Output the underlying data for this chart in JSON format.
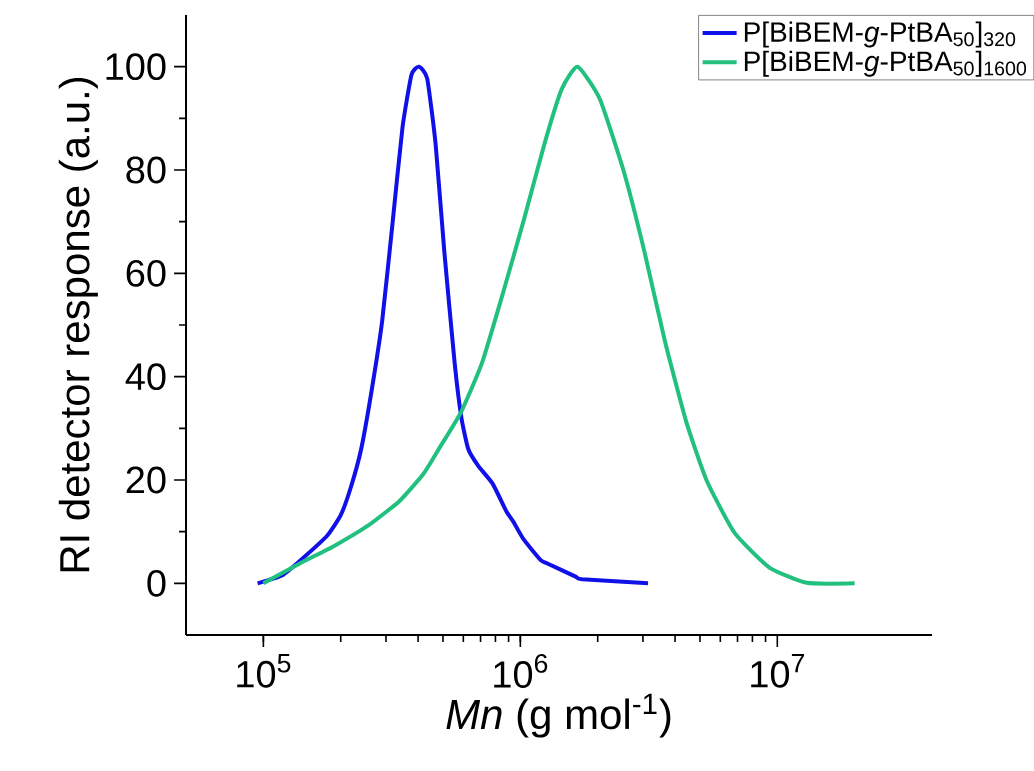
{
  "chart_data": {
    "type": "line",
    "xlabel": "*Mn* (g mol$^{-1}$)",
    "ylabel": "RI detector response (a.u.)",
    "log": "x",
    "xlim": [
      50000,
      40000000
    ],
    "ylim": [
      -10,
      110
    ],
    "xticks": [
      {
        "value": 100000,
        "label": "10$^{5}$"
      },
      {
        "value": 1000000,
        "label": "10$^{6}$"
      },
      {
        "value": 10000000,
        "label": "10$^{7}$"
      }
    ],
    "yticks": [
      0,
      20,
      40,
      60,
      80,
      100
    ],
    "legend": "top right",
    "grid": false,
    "marker": "none",
    "line_style": "solid",
    "series": [
      {
        "name": "P[BiBEM-*g*-PtBA$_{50}$]$_{320}$",
        "color": "#1010e8",
        "x": [
          95000,
          118000,
          142000,
          177000,
          200000,
          219000,
          240000,
          264000,
          290000,
          318000,
          348000,
          377000,
          403000,
          434000,
          468000,
          506000,
          555000,
          590000,
          628000,
          689000,
          780000,
          883000,
          940000,
          1030000,
          1200000,
          1280000,
          1640000,
          1740000,
          3140000
        ],
        "values": [
          0,
          1.5,
          4.8,
          9.2,
          13.2,
          18.6,
          25.9,
          37.4,
          50.8,
          69.6,
          88.3,
          98.4,
          100,
          97.7,
          85,
          64.2,
          42.7,
          32,
          25.9,
          22.6,
          19.3,
          13.9,
          11.9,
          8.5,
          4.5,
          3.8,
          1.3,
          0.8,
          0
        ]
      },
      {
        "name": "P[BiBEM-*g*-PtBA$_{50}$]$_{1600}$",
        "color": "#22c07f",
        "x": [
          100000,
          138000,
          188000,
          256000,
          338000,
          420000,
          490000,
          590000,
          710000,
          855000,
          1030000,
          1240000,
          1450000,
          1670000,
          2040000,
          2530000,
          3040000,
          3660000,
          4420000,
          5310000,
          6810000,
          9290000,
          13000000,
          20000000
        ],
        "values": [
          0,
          3.8,
          7.2,
          11.2,
          15.9,
          21.2,
          26.6,
          33.3,
          42.7,
          56.1,
          70.2,
          85,
          95.7,
          100,
          93.7,
          79.6,
          64.2,
          46.7,
          31.3,
          19.9,
          9.8,
          3.1,
          0.1,
          0
        ]
      }
    ]
  }
}
